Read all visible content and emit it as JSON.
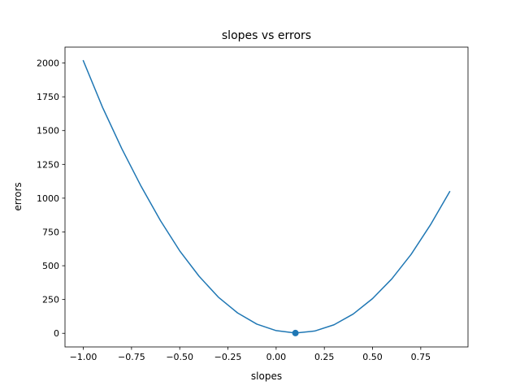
{
  "chart_data": {
    "type": "line",
    "title": "slopes vs errors",
    "xlabel": "slopes",
    "ylabel": "errors",
    "xlim": [
      -1.095,
      0.995
    ],
    "ylim": [
      -100.8,
      2117.6
    ],
    "xticks": [
      -1.0,
      -0.75,
      -0.5,
      -0.25,
      0.0,
      0.25,
      0.5,
      0.75
    ],
    "xtick_labels": [
      "−1.00",
      "−0.75",
      "−0.50",
      "−0.25",
      "0.00",
      "0.25",
      "0.50",
      "0.75"
    ],
    "yticks": [
      0,
      250,
      500,
      750,
      1000,
      1250,
      1500,
      1750,
      2000
    ],
    "ytick_labels": [
      "0",
      "250",
      "500",
      "750",
      "1000",
      "1250",
      "1500",
      "1750",
      "2000"
    ],
    "grid": false,
    "series": [
      {
        "color": "#1f77b4",
        "x": [
          -1.0,
          -0.9,
          -0.8,
          -0.7,
          -0.6,
          -0.5,
          -0.4,
          -0.3,
          -0.2,
          -0.1,
          0.0,
          0.1,
          0.2,
          0.3,
          0.4,
          0.5,
          0.6,
          0.7,
          0.8,
          0.9
        ],
        "y": [
          2017,
          1671,
          1365,
          1087,
          834,
          610,
          423,
          268,
          151,
          68,
          20,
          2,
          17,
          63,
          143,
          257,
          403,
          584,
          802,
          1048
        ]
      }
    ],
    "highlight_point": {
      "x": 0.1,
      "y": 2,
      "color": "#1f77b4"
    }
  }
}
